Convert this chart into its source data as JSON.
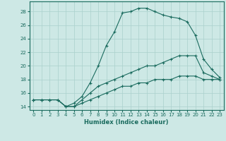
{
  "xlabel": "Humidex (Indice chaleur)",
  "xlim": [
    -0.5,
    23.5
  ],
  "ylim": [
    13.5,
    29.5
  ],
  "xticks": [
    0,
    1,
    2,
    3,
    4,
    5,
    6,
    7,
    8,
    9,
    10,
    11,
    12,
    13,
    14,
    15,
    16,
    17,
    18,
    19,
    20,
    21,
    22,
    23
  ],
  "yticks": [
    14,
    16,
    18,
    20,
    22,
    24,
    26,
    28
  ],
  "background_color": "#cde8e5",
  "grid_color": "#aad0cc",
  "line_color": "#1a6b5e",
  "line1_x": [
    0,
    1,
    2,
    3,
    4,
    5,
    6,
    7,
    8,
    9,
    10,
    11,
    12,
    13,
    14,
    15,
    16,
    17,
    18,
    19,
    20,
    21,
    22,
    23
  ],
  "line1_y": [
    15,
    15,
    15,
    15,
    14,
    14.5,
    15.5,
    17.5,
    20,
    23,
    25,
    27.8,
    28,
    28.5,
    28.5,
    28,
    27.5,
    27.2,
    27,
    26.5,
    24.5,
    21,
    19.5,
    18.3
  ],
  "line2_x": [
    0,
    1,
    2,
    3,
    4,
    5,
    6,
    7,
    8,
    9,
    10,
    11,
    12,
    13,
    14,
    15,
    16,
    17,
    18,
    19,
    20,
    21,
    22,
    23
  ],
  "line2_y": [
    15,
    15,
    15,
    15,
    14,
    14,
    15,
    16,
    17,
    17.5,
    18,
    18.5,
    19,
    19.5,
    20,
    20,
    20.5,
    21,
    21.5,
    21.5,
    21.5,
    19,
    18.5,
    18
  ],
  "line3_x": [
    0,
    1,
    2,
    3,
    4,
    5,
    6,
    7,
    8,
    9,
    10,
    11,
    12,
    13,
    14,
    15,
    16,
    17,
    18,
    19,
    20,
    21,
    22,
    23
  ],
  "line3_y": [
    15,
    15,
    15,
    15,
    14,
    14,
    14.5,
    15,
    15.5,
    16,
    16.5,
    17,
    17,
    17.5,
    17.5,
    18,
    18,
    18,
    18.5,
    18.5,
    18.5,
    18,
    18,
    18
  ]
}
